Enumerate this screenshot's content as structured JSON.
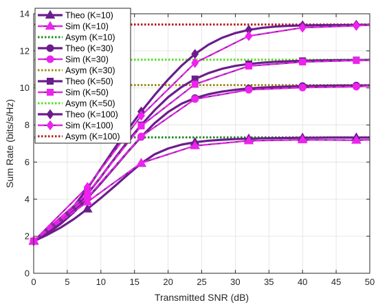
{
  "chart_data": {
    "type": "line",
    "xlabel": "Transmitted SNR (dB)",
    "ylabel": "Sum Rate (bits/s/Hz)",
    "xlim": [
      0,
      50
    ],
    "ylim": [
      0,
      14
    ],
    "xticks": [
      0,
      5,
      10,
      15,
      20,
      25,
      30,
      35,
      40,
      45,
      50
    ],
    "yticks": [
      0,
      2,
      4,
      6,
      8,
      10,
      12,
      14
    ],
    "grid": true,
    "legend_position": "top-left",
    "colors": {
      "theo": "#6b1d8c",
      "sim": "#ee22ee",
      "sim_dash_bg": "#7a2e8a"
    },
    "series": [
      {
        "name": "Theo (K=10)",
        "kind": "theo",
        "marker": "triangle",
        "x": [
          0,
          2,
          4,
          6,
          8,
          10,
          12,
          14,
          16,
          18,
          20,
          22,
          24,
          26,
          28,
          30,
          32,
          34,
          36,
          38,
          40,
          42,
          44,
          46,
          48,
          50
        ],
        "y": [
          1.73,
          2.07,
          2.46,
          2.93,
          3.47,
          4.06,
          4.68,
          5.32,
          5.93,
          6.42,
          6.73,
          6.94,
          7.07,
          7.15,
          7.2,
          7.24,
          7.26,
          7.28,
          7.29,
          7.3,
          7.31,
          7.31,
          7.32,
          7.32,
          7.32,
          7.32
        ]
      },
      {
        "name": "Sim (K=10)",
        "kind": "sim",
        "marker": "triangle",
        "x": [
          0,
          8,
          16,
          24,
          32,
          40,
          48,
          50
        ],
        "y": [
          1.75,
          3.85,
          5.95,
          6.88,
          7.15,
          7.2,
          7.18,
          7.2
        ]
      },
      {
        "name": "Asym  (K=10)",
        "kind": "asym",
        "color": "#1f8a1f",
        "y": 7.33
      },
      {
        "name": "Theo (K=30)",
        "kind": "theo",
        "marker": "circle",
        "x": [
          0,
          2,
          4,
          6,
          8,
          10,
          12,
          14,
          16,
          18,
          20,
          22,
          24,
          26,
          28,
          30,
          32,
          34,
          36,
          38,
          40,
          42,
          44,
          46,
          48,
          50
        ],
        "y": [
          1.73,
          2.13,
          2.66,
          3.3,
          4.05,
          4.86,
          5.7,
          6.55,
          7.36,
          8.1,
          8.7,
          9.15,
          9.45,
          9.66,
          9.8,
          9.9,
          9.97,
          10.02,
          10.05,
          10.08,
          10.1,
          10.11,
          10.12,
          10.13,
          10.13,
          10.13
        ]
      },
      {
        "name": "Sim (K=30)",
        "kind": "sim",
        "marker": "circle",
        "x": [
          0,
          8,
          16,
          24,
          32,
          40,
          48,
          50
        ],
        "y": [
          1.74,
          4.08,
          7.38,
          9.4,
          9.9,
          10.02,
          10.07,
          10.1
        ]
      },
      {
        "name": "Asym  (K=30)",
        "kind": "asym",
        "color": "#9a8a10",
        "y": 10.15
      },
      {
        "name": "Theo (K=50)",
        "kind": "theo",
        "marker": "square",
        "x": [
          0,
          2,
          4,
          6,
          8,
          10,
          12,
          14,
          16,
          18,
          20,
          22,
          24,
          26,
          28,
          30,
          32,
          34,
          36,
          38,
          40,
          42,
          44,
          46,
          48,
          50
        ],
        "y": [
          1.73,
          2.16,
          2.73,
          3.44,
          4.28,
          5.2,
          6.17,
          7.12,
          8.0,
          8.8,
          9.5,
          10.05,
          10.48,
          10.8,
          11.03,
          11.19,
          11.29,
          11.36,
          11.41,
          11.44,
          11.46,
          11.48,
          11.49,
          11.5,
          11.5,
          11.51
        ]
      },
      {
        "name": "Sim (K=50)",
        "kind": "sim",
        "marker": "square",
        "x": [
          0,
          8,
          16,
          24,
          32,
          40,
          48,
          50
        ],
        "y": [
          1.74,
          4.3,
          7.95,
          10.2,
          11.18,
          11.4,
          11.48,
          11.5
        ]
      },
      {
        "name": "Asym  (K=50)",
        "kind": "asym",
        "color": "#55dd22",
        "y": 11.52
      },
      {
        "name": "Theo (K=100)",
        "kind": "theo",
        "marker": "diamond",
        "x": [
          0,
          2,
          4,
          6,
          8,
          10,
          12,
          14,
          16,
          18,
          20,
          22,
          24,
          26,
          28,
          30,
          32,
          34,
          36,
          38,
          40,
          42,
          44,
          46,
          48,
          50
        ],
        "y": [
          1.73,
          2.2,
          2.82,
          3.62,
          4.58,
          5.65,
          6.72,
          7.75,
          8.72,
          9.62,
          10.45,
          11.2,
          11.83,
          12.33,
          12.7,
          12.96,
          13.13,
          13.24,
          13.31,
          13.35,
          13.37,
          13.38,
          13.39,
          13.39,
          13.4,
          13.4
        ]
      },
      {
        "name": "Sim (K=100)",
        "kind": "sim",
        "marker": "diamond",
        "x": [
          0,
          8,
          16,
          24,
          32,
          40,
          48,
          50
        ],
        "y": [
          1.74,
          4.65,
          8.5,
          11.35,
          12.8,
          13.25,
          13.35,
          13.4
        ]
      },
      {
        "name": "Asym  (K=100)",
        "kind": "asym",
        "color": "#b51a1a",
        "y": 13.42
      }
    ]
  }
}
